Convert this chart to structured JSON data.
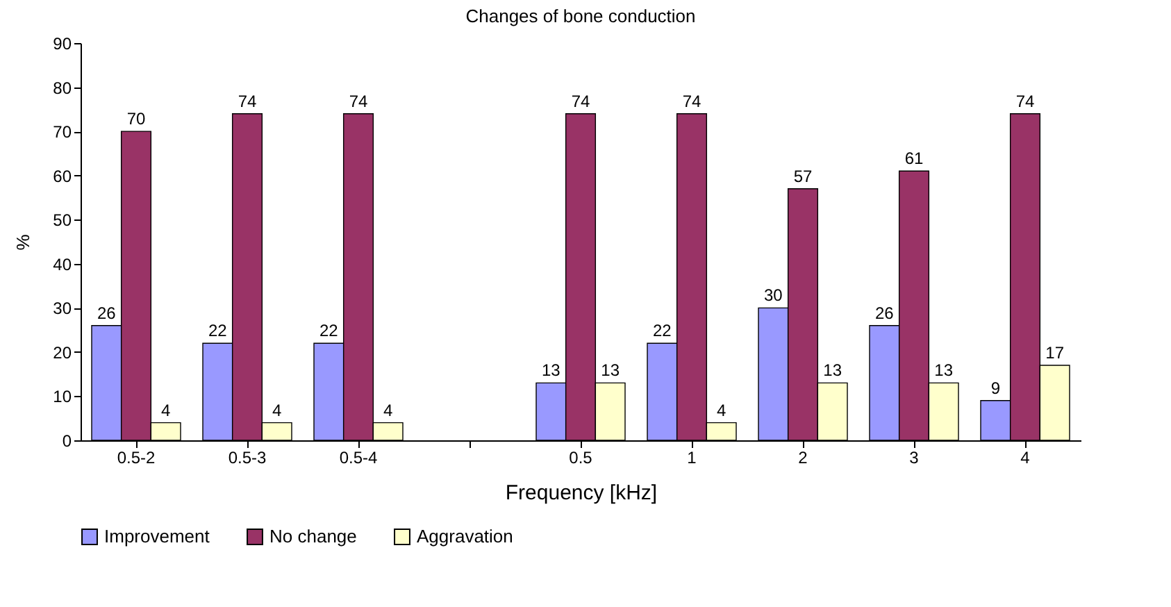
{
  "chart_data": {
    "type": "bar",
    "title": "Changes of bone conduction",
    "xlabel": "Frequency [kHz]",
    "ylabel": "%",
    "categories": [
      "0.5-2",
      "0.5-3",
      "0.5-4",
      null,
      "0.5",
      "1",
      "2",
      "3",
      "4"
    ],
    "series": [
      {
        "name": "Improvement",
        "color": "#9999ff",
        "values": [
          26,
          22,
          22,
          null,
          13,
          22,
          30,
          26,
          9
        ]
      },
      {
        "name": "No change",
        "color": "#993366",
        "values": [
          70,
          74,
          74,
          null,
          74,
          74,
          57,
          61,
          74
        ]
      },
      {
        "name": "Aggravation",
        "color": "#ffffcc",
        "values": [
          4,
          4,
          4,
          null,
          13,
          4,
          13,
          13,
          17
        ]
      }
    ],
    "ylim": [
      0,
      90
    ],
    "yticks": [
      0,
      10,
      20,
      30,
      40,
      50,
      60,
      70,
      80,
      90
    ],
    "grid": false,
    "legend": "bottom",
    "data_labels": true
  }
}
